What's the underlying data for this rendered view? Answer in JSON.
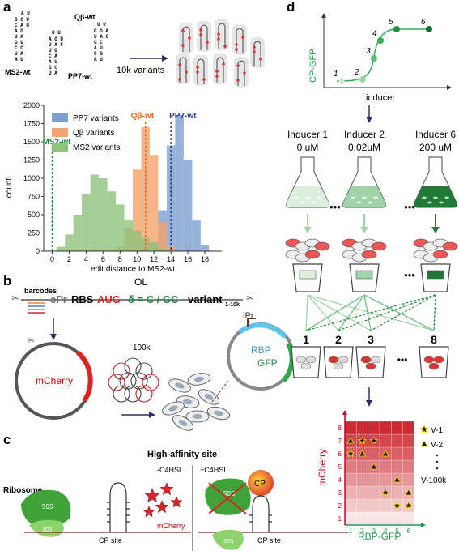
{
  "panels": {
    "a": "a",
    "b": "b",
    "c": "c",
    "d": "d"
  },
  "a": {
    "structures": {
      "ms2": "MS2-wt",
      "qb": "Qβ-wt",
      "pp7": "PP7-wt"
    },
    "variants_label": "10k variants"
  },
  "chart_data": {
    "type": "bar",
    "xlabel": "edit distance to MS2-wt",
    "ylabel": "count",
    "xlim": [
      -1,
      20
    ],
    "ylim": [
      0,
      2000
    ],
    "xticks": [
      0,
      2,
      4,
      6,
      8,
      10,
      12,
      14,
      16,
      18
    ],
    "yticks": [
      0,
      250,
      500,
      750,
      1000,
      1250,
      1500,
      1750,
      2000
    ],
    "series": [
      {
        "name": "PP7 variants",
        "color": "#7d9fd1",
        "x": [
          11,
          12,
          13,
          14,
          15,
          16,
          17,
          18
        ],
        "values": [
          30,
          120,
          560,
          1450,
          1870,
          1250,
          420,
          80
        ]
      },
      {
        "name": "Qβ variants",
        "color": "#f4a36a",
        "x": [
          8,
          9,
          10,
          11,
          12,
          13,
          14
        ],
        "values": [
          60,
          320,
          1120,
          1700,
          1320,
          400,
          60
        ]
      },
      {
        "name": "MS2 variants",
        "color": "#8fc27c",
        "x": [
          1,
          2,
          3,
          4,
          5,
          6,
          7,
          8,
          9,
          10,
          11,
          12,
          13
        ],
        "values": [
          60,
          230,
          500,
          780,
          1050,
          1000,
          820,
          640,
          420,
          280,
          180,
          120,
          40
        ]
      }
    ],
    "annotations": [
      {
        "label": "MS2-wt",
        "x": 0,
        "color": "#1f8a3c"
      },
      {
        "label": "Qβ-wt",
        "x": 11,
        "color": "#e86a1f"
      },
      {
        "label": "PP7-wt",
        "x": 14,
        "color": "#2b3d8f"
      }
    ]
  },
  "b": {
    "ol": "OL",
    "barcodes": "barcodes",
    "cpr": "cPr",
    "rbs": "RBS",
    "aug": "AUG",
    "delta": "δ = C / GC",
    "variant": "variant",
    "range": "1-10k",
    "mcherry": "mCherry",
    "lib": "100k",
    "ipr": "iPr",
    "rbp": "RBP",
    "gfp": "GFP"
  },
  "c": {
    "title": "High-affinity site",
    "minus": "-C4HSL",
    "plus": "+C4HSL",
    "ribosome": "Ribosome",
    "s50": "50S",
    "s30": "30S",
    "cp": "CP",
    "cpsite": "CP site",
    "mcherry": "mCherry"
  },
  "d": {
    "ylabel": "CP-GFP",
    "xlabel": "inducer",
    "points": [
      "1",
      "2",
      "3",
      "4",
      "5",
      "6"
    ],
    "inducers": [
      {
        "name": "Inducer 1",
        "conc": "0 uM",
        "color": "#dcefdf"
      },
      {
        "name": "Inducer 2",
        "conc": "0.02uM",
        "color": "#9fd4a8"
      },
      {
        "name": "Inducer 6",
        "conc": "200 uM",
        "color": "#1e7a34"
      }
    ],
    "dots": "•••",
    "bins": [
      "1",
      "2",
      "3",
      "8"
    ],
    "grid_y": "mCherry",
    "grid_x": "RBP-GFP",
    "grid_xticks": [
      "1",
      "2",
      "3",
      "4",
      "5",
      "6"
    ],
    "grid_yticks": [
      "1",
      "2",
      "3",
      "4",
      "5",
      "6",
      "7",
      "8"
    ],
    "legend": [
      "V-1",
      "V-2",
      "V-100k"
    ]
  }
}
